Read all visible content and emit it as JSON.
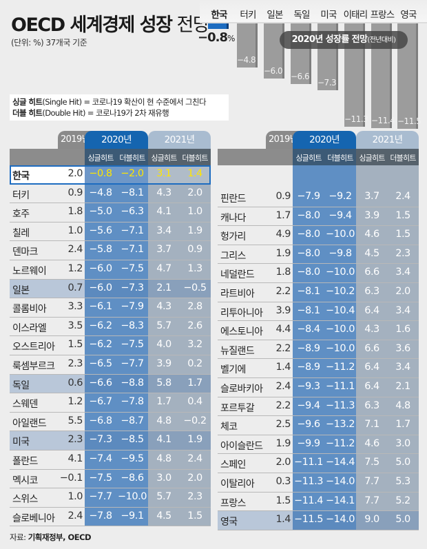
{
  "title": {
    "bold": "OECD 세계경제 성장",
    "light": " 전망"
  },
  "subtitle": "(단위: %) 37개국 기준",
  "legend": {
    "single_term": "싱글 히트",
    "single_desc": "(Single Hit) = 코로나19 확산이 현 수준에서 그친다",
    "double_term": "더블 히트",
    "double_desc": "(Double Hit) = 코로나19가 2차 재유행"
  },
  "bar_chart": {
    "badge": "2020년 성장률 전망",
    "badge_note": "(전년대비)",
    "korea_value": "−0.8",
    "korea_unit": "%",
    "bars": [
      {
        "label": "한국",
        "value": "",
        "num": -0.8
      },
      {
        "label": "터키",
        "value": "−4.8",
        "num": -4.8
      },
      {
        "label": "일본",
        "value": "−6.0",
        "num": -6.0
      },
      {
        "label": "독일",
        "value": "−6.6",
        "num": -6.6
      },
      {
        "label": "미국",
        "value": "−7.3",
        "num": -7.3
      },
      {
        "label": "이태리",
        "value": "−11.3",
        "num": -11.3
      },
      {
        "label": "프랑스",
        "value": "−11.4",
        "num": -11.4
      },
      {
        "label": "영국",
        "value": "−11.5",
        "num": -11.5
      }
    ]
  },
  "table_headers": {
    "y2019": "2019년",
    "y2020": "2020년",
    "y2021": "2021년",
    "single": "싱글히트",
    "double": "더블히트"
  },
  "left_rows": [
    {
      "name": "한국",
      "v2019": "2.0",
      "s2020": "−0.8",
      "d2020": "−2.0",
      "s2021": "3.1",
      "d2021": "1.4",
      "type": "korea"
    },
    {
      "name": "터키",
      "v2019": "0.9",
      "s2020": "−4.8",
      "d2020": "−8.1",
      "s2021": "4.3",
      "d2021": "2.0"
    },
    {
      "name": "호주",
      "v2019": "1.8",
      "s2020": "−5.0",
      "d2020": "−6.3",
      "s2021": "4.1",
      "d2021": "1.0"
    },
    {
      "name": "칠레",
      "v2019": "1.0",
      "s2020": "−5.6",
      "d2020": "−7.1",
      "s2021": "3.4",
      "d2021": "1.9"
    },
    {
      "name": "덴마크",
      "v2019": "2.4",
      "s2020": "−5.8",
      "d2020": "−7.1",
      "s2021": "3.7",
      "d2021": "0.9"
    },
    {
      "name": "노르웨이",
      "v2019": "1.2",
      "s2020": "−6.0",
      "d2020": "−7.5",
      "s2021": "4.7",
      "d2021": "1.3"
    },
    {
      "name": "일본",
      "v2019": "0.7",
      "s2020": "−6.0",
      "d2020": "−7.3",
      "s2021": "2.1",
      "d2021": "−0.5",
      "type": "hl"
    },
    {
      "name": "콜롬비아",
      "v2019": "3.3",
      "s2020": "−6.1",
      "d2020": "−7.9",
      "s2021": "4.3",
      "d2021": "2.8"
    },
    {
      "name": "이스라엘",
      "v2019": "3.5",
      "s2020": "−6.2",
      "d2020": "−8.3",
      "s2021": "5.7",
      "d2021": "2.6"
    },
    {
      "name": "오스트리아",
      "v2019": "1.5",
      "s2020": "−6.2",
      "d2020": "−7.5",
      "s2021": "4.0",
      "d2021": "3.2"
    },
    {
      "name": "룩셈부르크",
      "v2019": "2.3",
      "s2020": "−6.5",
      "d2020": "−7.7",
      "s2021": "3.9",
      "d2021": "0.2"
    },
    {
      "name": "독일",
      "v2019": "0.6",
      "s2020": "−6.6",
      "d2020": "−8.8",
      "s2021": "5.8",
      "d2021": "1.7",
      "type": "hl"
    },
    {
      "name": "스웨덴",
      "v2019": "1.2",
      "s2020": "−6.7",
      "d2020": "−7.8",
      "s2021": "1.7",
      "d2021": "0.4"
    },
    {
      "name": "아일랜드",
      "v2019": "5.5",
      "s2020": "−6.8",
      "d2020": "−8.7",
      "s2021": "4.8",
      "d2021": "−0.2"
    },
    {
      "name": "미국",
      "v2019": "2.3",
      "s2020": "−7.3",
      "d2020": "−8.5",
      "s2021": "4.1",
      "d2021": "1.9",
      "type": "hl"
    },
    {
      "name": "폴란드",
      "v2019": "4.1",
      "s2020": "−7.4",
      "d2020": "−9.5",
      "s2021": "4.8",
      "d2021": "2.4"
    },
    {
      "name": "멕시코",
      "v2019": "−0.1",
      "s2020": "−7.5",
      "d2020": "−8.6",
      "s2021": "3.0",
      "d2021": "2.0"
    },
    {
      "name": "스위스",
      "v2019": "1.0",
      "s2020": "−7.7",
      "d2020": "−10.0",
      "s2021": "5.7",
      "d2021": "2.3"
    },
    {
      "name": "슬로베니아",
      "v2019": "2.4",
      "s2020": "−7.8",
      "d2020": "−9.1",
      "s2021": "4.5",
      "d2021": "1.5"
    }
  ],
  "right_rows": [
    {
      "name": "핀란드",
      "v2019": "0.9",
      "s2020": "−7.9",
      "d2020": "−9.2",
      "s2021": "3.7",
      "d2021": "2.4"
    },
    {
      "name": "캐나다",
      "v2019": "1.7",
      "s2020": "−8.0",
      "d2020": "−9.4",
      "s2021": "3.9",
      "d2021": "1.5"
    },
    {
      "name": "헝가리",
      "v2019": "4.9",
      "s2020": "−8.0",
      "d2020": "−10.0",
      "s2021": "4.6",
      "d2021": "1.5"
    },
    {
      "name": "그리스",
      "v2019": "1.9",
      "s2020": "−8.0",
      "d2020": "−9.8",
      "s2021": "4.5",
      "d2021": "2.3"
    },
    {
      "name": "네덜란드",
      "v2019": "1.8",
      "s2020": "−8.0",
      "d2020": "−10.0",
      "s2021": "6.6",
      "d2021": "3.4"
    },
    {
      "name": "라트비아",
      "v2019": "2.2",
      "s2020": "−8.1",
      "d2020": "−10.2",
      "s2021": "6.3",
      "d2021": "2.0"
    },
    {
      "name": "리투아니아",
      "v2019": "3.9",
      "s2020": "−8.1",
      "d2020": "−10.4",
      "s2021": "6.4",
      "d2021": "3.4"
    },
    {
      "name": "에스토니아",
      "v2019": "4.4",
      "s2020": "−8.4",
      "d2020": "−10.0",
      "s2021": "4.3",
      "d2021": "1.6"
    },
    {
      "name": "뉴질랜드",
      "v2019": "2.2",
      "s2020": "−8.9",
      "d2020": "−10.0",
      "s2021": "6.6",
      "d2021": "3.6"
    },
    {
      "name": "벨기에",
      "v2019": "1.4",
      "s2020": "−8.9",
      "d2020": "−11.2",
      "s2021": "6.4",
      "d2021": "3.4"
    },
    {
      "name": "슬로바키아",
      "v2019": "2.4",
      "s2020": "−9.3",
      "d2020": "−11.1",
      "s2021": "6.4",
      "d2021": "2.1"
    },
    {
      "name": "포르투갈",
      "v2019": "2.2",
      "s2020": "−9.4",
      "d2020": "−11.3",
      "s2021": "6.3",
      "d2021": "4.8"
    },
    {
      "name": "체코",
      "v2019": "2.5",
      "s2020": "−9.6",
      "d2020": "−13.2",
      "s2021": "7.1",
      "d2021": "1.7"
    },
    {
      "name": "아이슬란드",
      "v2019": "1.9",
      "s2020": "−9.9",
      "d2020": "−11.2",
      "s2021": "4.6",
      "d2021": "3.0"
    },
    {
      "name": "스페인",
      "v2019": "2.0",
      "s2020": "−11.1",
      "d2020": "−14.4",
      "s2021": "7.5",
      "d2021": "5.0"
    },
    {
      "name": "이탈리아",
      "v2019": "0.3",
      "s2020": "−11.3",
      "d2020": "−14.0",
      "s2021": "7.7",
      "d2021": "5.3"
    },
    {
      "name": "프랑스",
      "v2019": "1.5",
      "s2020": "−11.4",
      "d2020": "−14.1",
      "s2021": "7.7",
      "d2021": "5.2"
    },
    {
      "name": "영국",
      "v2019": "1.4",
      "s2020": "−11.5",
      "d2020": "−14.0",
      "s2021": "9.0",
      "d2021": "5.0",
      "type": "hl"
    }
  ],
  "source": {
    "label": "자료: ",
    "value": "기획재정부, OECD"
  },
  "colors": {
    "col2020": "#5f8fc4",
    "col2021": "#a4b1bf",
    "tab2020": "#1565b0",
    "tab2021": "#a9bcd0",
    "korea_highlight": "#ffe600",
    "korea_bar": "#1d6cc0",
    "other_bar": "#9c9c9c"
  },
  "chart_data": [
    {
      "type": "bar",
      "title": "2020년 성장률 전망(전년대비)",
      "categories": [
        "한국",
        "터키",
        "일본",
        "독일",
        "미국",
        "이태리",
        "프랑스",
        "영국"
      ],
      "values": [
        -0.8,
        -4.8,
        -6.0,
        -6.6,
        -7.3,
        -11.3,
        -11.4,
        -11.5
      ],
      "xlabel": "",
      "ylabel": "%"
    },
    {
      "type": "table",
      "title": "OECD 세계경제 성장 전망 (단위: %) 37개국 기준",
      "columns": [
        "국가",
        "2019년",
        "2020년 싱글히트",
        "2020년 더블히트",
        "2021년 싱글히트",
        "2021년 더블히트"
      ],
      "rows": [
        [
          "한국",
          2.0,
          -0.8,
          -2.0,
          3.1,
          1.4
        ],
        [
          "터키",
          0.9,
          -4.8,
          -8.1,
          4.3,
          2.0
        ],
        [
          "호주",
          1.8,
          -5.0,
          -6.3,
          4.1,
          1.0
        ],
        [
          "칠레",
          1.0,
          -5.6,
          -7.1,
          3.4,
          1.9
        ],
        [
          "덴마크",
          2.4,
          -5.8,
          -7.1,
          3.7,
          0.9
        ],
        [
          "노르웨이",
          1.2,
          -6.0,
          -7.5,
          4.7,
          1.3
        ],
        [
          "일본",
          0.7,
          -6.0,
          -7.3,
          2.1,
          -0.5
        ],
        [
          "콜롬비아",
          3.3,
          -6.1,
          -7.9,
          4.3,
          2.8
        ],
        [
          "이스라엘",
          3.5,
          -6.2,
          -8.3,
          5.7,
          2.6
        ],
        [
          "오스트리아",
          1.5,
          -6.2,
          -7.5,
          4.0,
          3.2
        ],
        [
          "룩셈부르크",
          2.3,
          -6.5,
          -7.7,
          3.9,
          0.2
        ],
        [
          "독일",
          0.6,
          -6.6,
          -8.8,
          5.8,
          1.7
        ],
        [
          "스웨덴",
          1.2,
          -6.7,
          -7.8,
          1.7,
          0.4
        ],
        [
          "아일랜드",
          5.5,
          -6.8,
          -8.7,
          4.8,
          -0.2
        ],
        [
          "미국",
          2.3,
          -7.3,
          -8.5,
          4.1,
          1.9
        ],
        [
          "폴란드",
          4.1,
          -7.4,
          -9.5,
          4.8,
          2.4
        ],
        [
          "멕시코",
          -0.1,
          -7.5,
          -8.6,
          3.0,
          2.0
        ],
        [
          "스위스",
          1.0,
          -7.7,
          -10.0,
          5.7,
          2.3
        ],
        [
          "슬로베니아",
          2.4,
          -7.8,
          -9.1,
          4.5,
          1.5
        ],
        [
          "핀란드",
          0.9,
          -7.9,
          -9.2,
          3.7,
          2.4
        ],
        [
          "캐나다",
          1.7,
          -8.0,
          -9.4,
          3.9,
          1.5
        ],
        [
          "헝가리",
          4.9,
          -8.0,
          -10.0,
          4.6,
          1.5
        ],
        [
          "그리스",
          1.9,
          -8.0,
          -9.8,
          4.5,
          2.3
        ],
        [
          "네덜란드",
          1.8,
          -8.0,
          -10.0,
          6.6,
          3.4
        ],
        [
          "라트비아",
          2.2,
          -8.1,
          -10.2,
          6.3,
          2.0
        ],
        [
          "리투아니아",
          3.9,
          -8.1,
          -10.4,
          6.4,
          3.4
        ],
        [
          "에스토니아",
          4.4,
          -8.4,
          -10.0,
          4.3,
          1.6
        ],
        [
          "뉴질랜드",
          2.2,
          -8.9,
          -10.0,
          6.6,
          3.6
        ],
        [
          "벨기에",
          1.4,
          -8.9,
          -11.2,
          6.4,
          3.4
        ],
        [
          "슬로바키아",
          2.4,
          -9.3,
          -11.1,
          6.4,
          2.1
        ],
        [
          "포르투갈",
          2.2,
          -9.4,
          -11.3,
          6.3,
          4.8
        ],
        [
          "체코",
          2.5,
          -9.6,
          -13.2,
          7.1,
          1.7
        ],
        [
          "아이슬란드",
          1.9,
          -9.9,
          -11.2,
          4.6,
          3.0
        ],
        [
          "스페인",
          2.0,
          -11.1,
          -14.4,
          7.5,
          5.0
        ],
        [
          "이탈리아",
          0.3,
          -11.3,
          -14.0,
          7.7,
          5.3
        ],
        [
          "프랑스",
          1.5,
          -11.4,
          -14.1,
          7.7,
          5.2
        ],
        [
          "영국",
          1.4,
          -11.5,
          -14.0,
          9.0,
          5.0
        ]
      ]
    }
  ]
}
